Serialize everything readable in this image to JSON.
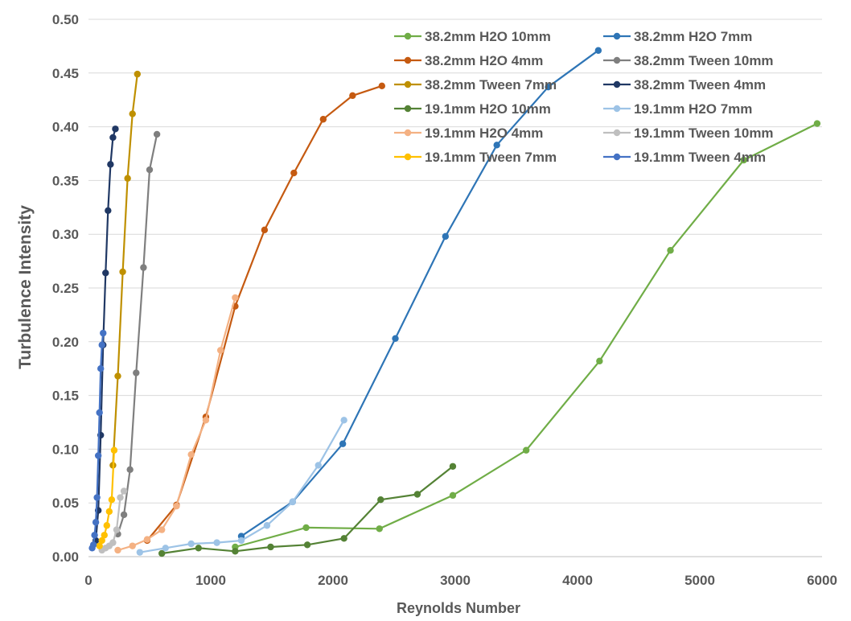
{
  "chart_data": {
    "type": "line",
    "title": "",
    "xlabel": "Reynolds Number",
    "ylabel": "Turbulence Intensity",
    "xlim": [
      0,
      6000
    ],
    "ylim": [
      0,
      0.5
    ],
    "xticks": [
      "0",
      "1000",
      "2000",
      "3000",
      "4000",
      "5000",
      "6000"
    ],
    "yticks": [
      "0.00",
      "0.05",
      "0.10",
      "0.15",
      "0.20",
      "0.25",
      "0.30",
      "0.35",
      "0.40",
      "0.45",
      "0.50"
    ],
    "grid": "horizontal",
    "legend_position": "top-right",
    "series": [
      {
        "name": "38.2mm H2O 10mm",
        "color": "#70ad47",
        "x": [
          1200,
          1780,
          2380,
          2980,
          3580,
          4180,
          4760,
          5360,
          5960
        ],
        "y": [
          0.009,
          0.027,
          0.026,
          0.057,
          0.099,
          0.182,
          0.285,
          0.369,
          0.403
        ]
      },
      {
        "name": "38.2mm H2O 7mm",
        "color": "#2e75b6",
        "x": [
          1250,
          1670,
          2080,
          2510,
          2920,
          3340,
          3760,
          4170
        ],
        "y": [
          0.019,
          0.051,
          0.105,
          0.203,
          0.298,
          0.383,
          0.437,
          0.471
        ]
      },
      {
        "name": "38.2mm H2O 4mm",
        "color": "#c55a11",
        "x": [
          480,
          720,
          960,
          1200,
          1440,
          1680,
          1920,
          2160,
          2400
        ],
        "y": [
          0.015,
          0.048,
          0.13,
          0.233,
          0.304,
          0.357,
          0.407,
          0.429,
          0.438
        ]
      },
      {
        "name": "38.2mm Tween 10mm",
        "color": "#7f7f7f",
        "x": [
          240,
          290,
          340,
          390,
          450,
          500,
          560
        ],
        "y": [
          0.021,
          0.039,
          0.081,
          0.171,
          0.269,
          0.36,
          0.393
        ]
      },
      {
        "name": "38.2mm Tween 7mm",
        "color": "#bf9000",
        "x": [
          200,
          240,
          280,
          320,
          360,
          400
        ],
        "y": [
          0.085,
          0.168,
          0.265,
          0.352,
          0.412,
          0.449
        ]
      },
      {
        "name": "38.2mm Tween 4mm",
        "color": "#203864",
        "x": [
          60,
          80,
          100,
          120,
          140,
          160,
          180,
          200,
          220
        ],
        "y": [
          0.015,
          0.043,
          0.113,
          0.197,
          0.264,
          0.322,
          0.365,
          0.39,
          0.398
        ]
      },
      {
        "name": "19.1mm H2O 10mm",
        "color": "#548235",
        "x": [
          600,
          900,
          1200,
          1490,
          1790,
          2090,
          2390,
          2690,
          2980
        ],
        "y": [
          0.003,
          0.008,
          0.005,
          0.009,
          0.011,
          0.017,
          0.053,
          0.058,
          0.084
        ]
      },
      {
        "name": "19.1mm H2O 7mm",
        "color": "#9dc3e6",
        "x": [
          420,
          630,
          840,
          1050,
          1250,
          1460,
          1670,
          1880,
          2090
        ],
        "y": [
          0.004,
          0.008,
          0.012,
          0.013,
          0.015,
          0.029,
          0.051,
          0.085,
          0.127
        ]
      },
      {
        "name": "19.1mm H2O 4mm",
        "color": "#f4b183",
        "x": [
          240,
          360,
          480,
          600,
          720,
          840,
          960,
          1080,
          1200
        ],
        "y": [
          0.006,
          0.01,
          0.016,
          0.025,
          0.047,
          0.095,
          0.127,
          0.192,
          0.241
        ]
      },
      {
        "name": "19.1mm Tween 10mm",
        "color": "#bfbfbf",
        "x": [
          110,
          140,
          170,
          200,
          230,
          260,
          290
        ],
        "y": [
          0.006,
          0.008,
          0.01,
          0.013,
          0.025,
          0.055,
          0.061
        ]
      },
      {
        "name": "19.1mm Tween 7mm",
        "color": "#ffc000",
        "x": [
          90,
          110,
          130,
          150,
          170,
          190,
          210
        ],
        "y": [
          0.01,
          0.015,
          0.02,
          0.029,
          0.042,
          0.053,
          0.099
        ]
      },
      {
        "name": "19.1mm Tween 4mm",
        "color": "#4472c4",
        "x": [
          30,
          40,
          50,
          60,
          70,
          80,
          90,
          100,
          110,
          120
        ],
        "y": [
          0.008,
          0.011,
          0.02,
          0.032,
          0.055,
          0.094,
          0.134,
          0.175,
          0.197,
          0.208
        ]
      }
    ]
  }
}
